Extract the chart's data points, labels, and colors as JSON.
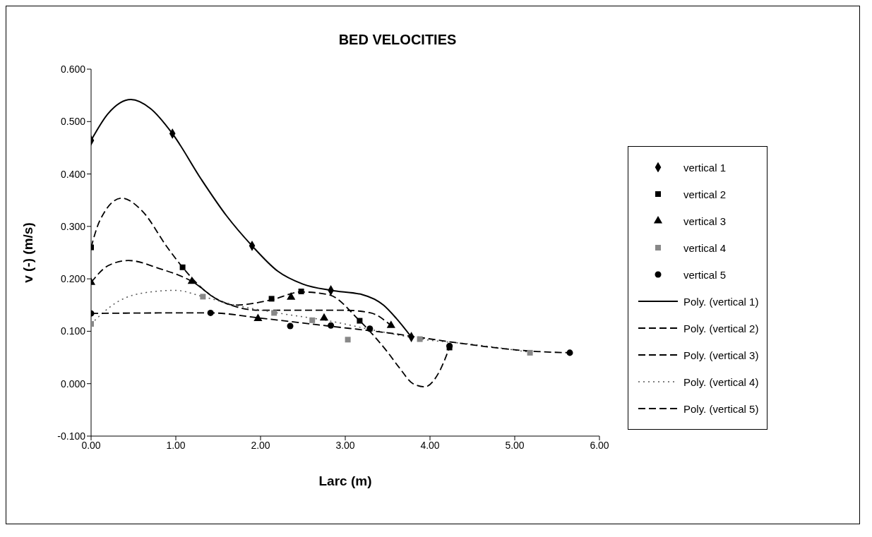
{
  "chart_data": {
    "type": "scatter",
    "title": "BED VELOCITIES",
    "xlabel": "Larc (m)",
    "ylabel": "v (-) (m/s)",
    "xlim": [
      0,
      6
    ],
    "xticks": [
      {
        "value": 0,
        "label": "0.00"
      },
      {
        "value": 1,
        "label": "1.00"
      },
      {
        "value": 2,
        "label": "2.00"
      },
      {
        "value": 3,
        "label": "3.00"
      },
      {
        "value": 4,
        "label": "4.00"
      },
      {
        "value": 5,
        "label": "5.00"
      },
      {
        "value": 6,
        "label": "6.00"
      }
    ],
    "ylim": [
      -0.1,
      0.6
    ],
    "yticks": [
      {
        "value": -0.1,
        "label": "-0.100"
      },
      {
        "value": 0,
        "label": "0.000"
      },
      {
        "value": 0.1,
        "label": "0.100"
      },
      {
        "value": 0.2,
        "label": "0.200"
      },
      {
        "value": 0.3,
        "label": "0.300"
      },
      {
        "value": 0.4,
        "label": "0.400"
      },
      {
        "value": 0.5,
        "label": "0.500"
      },
      {
        "value": 0.6,
        "label": "0.600"
      }
    ],
    "grid": false,
    "legend": "right",
    "series": [
      {
        "name": "vertical 1",
        "marker": "diamond",
        "color": "#000000",
        "x": [
          0,
          0.96,
          1.9,
          2.83,
          3.78
        ],
        "values": [
          0.464,
          0.477,
          0.263,
          0.178,
          0.089
        ]
      },
      {
        "name": "vertical 2",
        "marker": "square",
        "color": "#000000",
        "x": [
          0,
          1.08,
          2.13,
          2.48,
          3.17,
          4.23
        ],
        "values": [
          0.26,
          0.222,
          0.162,
          0.176,
          0.12,
          0.069
        ]
      },
      {
        "name": "vertical 3",
        "marker": "triangle",
        "color": "#000000",
        "x": [
          0,
          1.19,
          1.97,
          2.36,
          2.75,
          3.54
        ],
        "values": [
          0.193,
          0.195,
          0.124,
          0.165,
          0.125,
          0.111
        ]
      },
      {
        "name": "vertical 4",
        "marker": "square",
        "color": "#888888",
        "x": [
          0,
          1.32,
          2.16,
          2.61,
          3.03,
          3.88,
          5.18
        ],
        "values": [
          0.114,
          0.166,
          0.135,
          0.121,
          0.084,
          0.085,
          0.059
        ]
      },
      {
        "name": "vertical 5",
        "marker": "circle",
        "color": "#000000",
        "x": [
          0,
          1.41,
          2.35,
          2.83,
          3.29,
          4.23,
          5.65
        ],
        "values": [
          0.134,
          0.135,
          0.11,
          0.111,
          0.105,
          0.072,
          0.059
        ]
      },
      {
        "name": "Poly. (vertical 1)",
        "type": "line",
        "line_style": "solid",
        "color": "#000000",
        "x": [
          0,
          0.2,
          0.47,
          0.7,
          0.96,
          1.3,
          1.6,
          1.9,
          2.2,
          2.5,
          2.83,
          3.2,
          3.45,
          3.6,
          3.78
        ],
        "values": [
          0.464,
          0.515,
          0.542,
          0.525,
          0.477,
          0.39,
          0.32,
          0.263,
          0.215,
          0.19,
          0.178,
          0.17,
          0.15,
          0.125,
          0.089
        ]
      },
      {
        "name": "Poly. (vertical 2)",
        "type": "line",
        "line_style": "dashed",
        "color": "#000000",
        "x": [
          0,
          0.1,
          0.36,
          0.6,
          0.9,
          1.08,
          1.4,
          1.7,
          2.13,
          2.48,
          2.8,
          3.17,
          3.5,
          3.64,
          3.8,
          3.94,
          4.1,
          4.23
        ],
        "values": [
          0.26,
          0.31,
          0.354,
          0.33,
          0.26,
          0.222,
          0.17,
          0.15,
          0.16,
          0.175,
          0.17,
          0.12,
          0.06,
          0.03,
          0.0,
          -0.006,
          0.02,
          0.069
        ]
      },
      {
        "name": "Poly. (vertical 3)",
        "type": "line",
        "line_style": "dashed",
        "color": "#000000",
        "x": [
          0,
          0.2,
          0.44,
          0.8,
          1.19,
          1.5,
          2.0,
          2.5,
          3.0,
          3.3,
          3.54
        ],
        "values": [
          0.193,
          0.225,
          0.235,
          0.22,
          0.195,
          0.16,
          0.14,
          0.14,
          0.14,
          0.135,
          0.111
        ]
      },
      {
        "name": "Poly. (vertical 4)",
        "type": "line",
        "line_style": "dotted",
        "color": "#555555",
        "x": [
          0,
          0.3,
          0.7,
          1.0,
          1.32,
          1.7,
          2.2,
          2.8,
          3.4,
          3.9,
          4.5,
          5.18
        ],
        "values": [
          0.114,
          0.155,
          0.175,
          0.178,
          0.166,
          0.15,
          0.135,
          0.12,
          0.1,
          0.085,
          0.075,
          0.06
        ]
      },
      {
        "name": "Poly. (vertical 5)",
        "type": "line",
        "line_style": "dashed",
        "color": "#000000",
        "x": [
          0,
          1.0,
          1.41,
          2.0,
          2.8,
          3.5,
          4.23,
          4.8,
          5.2,
          5.65
        ],
        "values": [
          0.134,
          0.135,
          0.135,
          0.125,
          0.11,
          0.097,
          0.08,
          0.068,
          0.062,
          0.059
        ]
      }
    ]
  }
}
